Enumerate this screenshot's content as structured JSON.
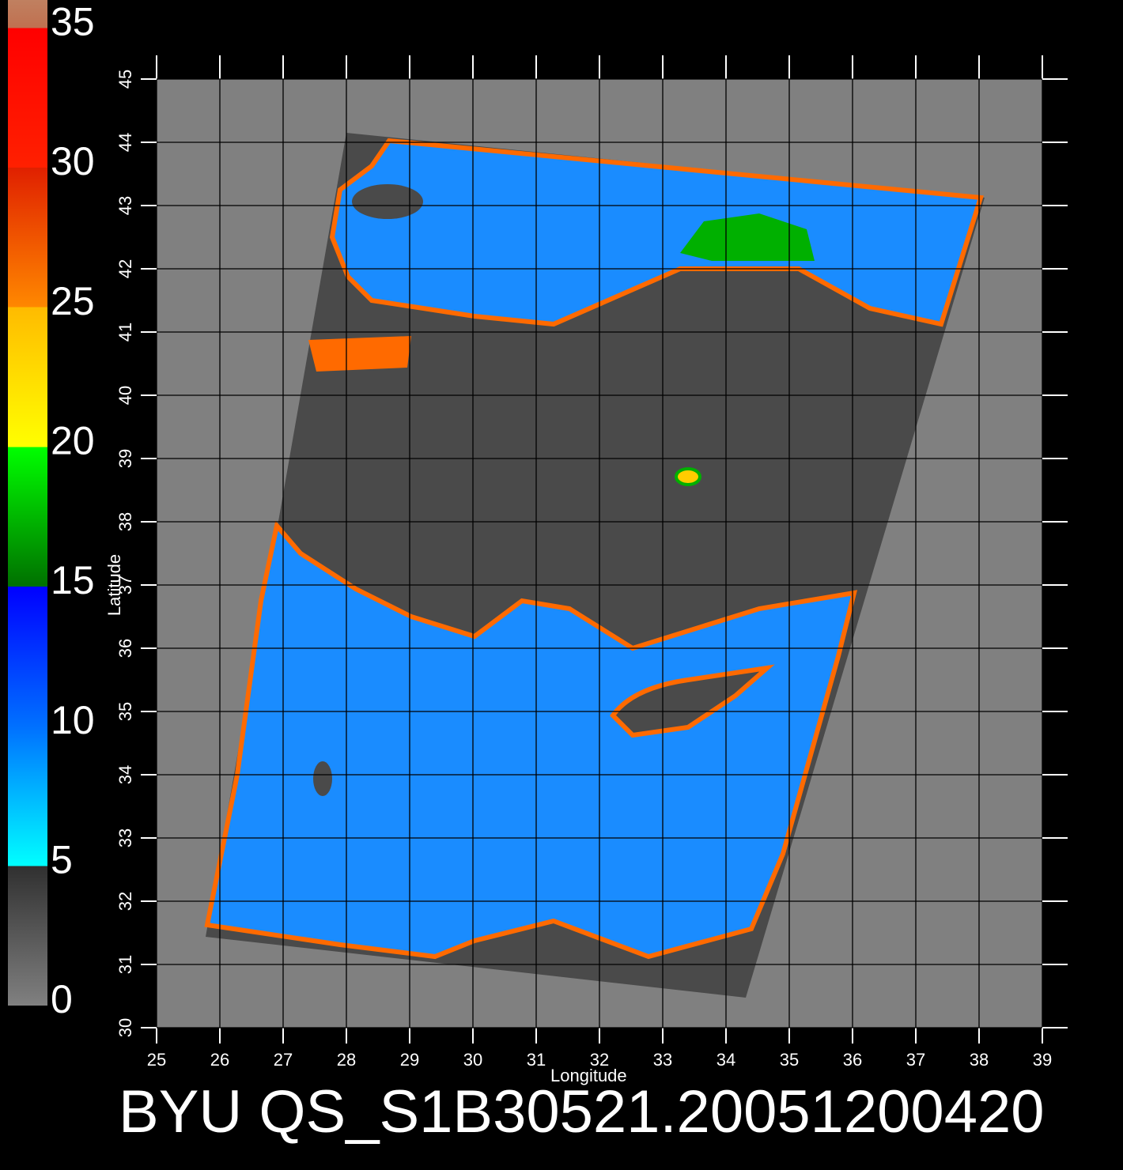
{
  "chart_data": {
    "type": "map",
    "title": "BYU QS_S1B30521.20051200420",
    "x_label": "Longitude",
    "y_label": "Latitude",
    "xlim": [
      25,
      39
    ],
    "ylim": [
      30,
      45
    ],
    "xticks": [
      25,
      26,
      27,
      28,
      29,
      30,
      31,
      32,
      33,
      34,
      35,
      36,
      37,
      38,
      39
    ],
    "yticks": [
      30,
      31,
      32,
      33,
      34,
      35,
      36,
      37,
      38,
      39,
      40,
      41,
      42,
      43,
      44,
      45
    ],
    "grid": true,
    "colorbar": {
      "lim": [
        0,
        36
      ],
      "ticks": [
        0,
        5,
        10,
        15,
        20,
        25,
        30,
        35
      ],
      "stops": [
        {
          "value": 0,
          "color": "#808080"
        },
        {
          "value": 5,
          "color": "#303030"
        },
        {
          "value": 5,
          "color": "#00ffff"
        },
        {
          "value": 10,
          "color": "#0070ff"
        },
        {
          "value": 15,
          "color": "#0000ff"
        },
        {
          "value": 15,
          "color": "#007000"
        },
        {
          "value": 20,
          "color": "#00ff00"
        },
        {
          "value": 20,
          "color": "#ffff00"
        },
        {
          "value": 25,
          "color": "#ffbb00"
        },
        {
          "value": 25,
          "color": "#ff8800"
        },
        {
          "value": 30,
          "color": "#e02000"
        },
        {
          "value": 30,
          "color": "#ff2000"
        },
        {
          "value": 35,
          "color": "#ff0000"
        },
        {
          "value": 35,
          "color": "#c07050"
        },
        {
          "value": 36,
          "color": "#c08060"
        }
      ]
    }
  }
}
